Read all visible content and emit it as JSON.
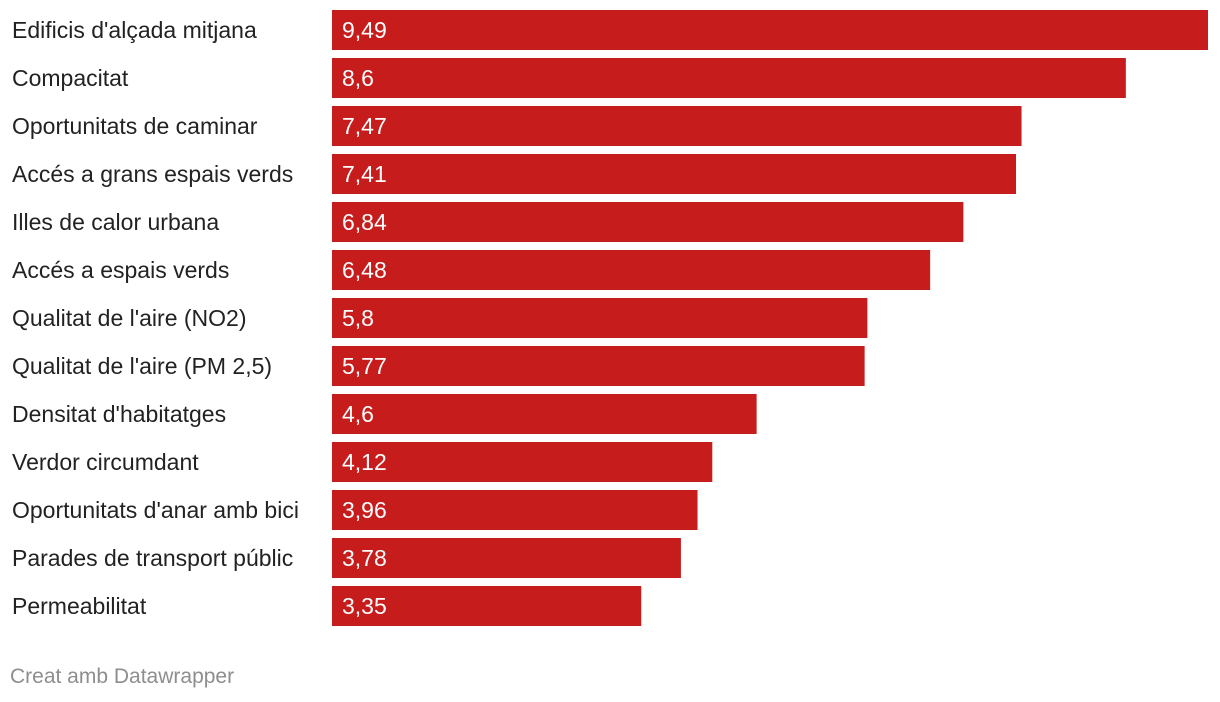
{
  "chart_data": {
    "type": "bar",
    "orientation": "horizontal",
    "categories": [
      "Edificis d'alçada mitjana",
      "Compacitat",
      "Oportunitats de caminar",
      "Accés a grans espais verds",
      "Illes de calor urbana",
      "Accés a espais verds",
      "Qualitat de l'aire (NO2)",
      "Qualitat de l'aire (PM 2,5)",
      "Densitat d'habitatges",
      "Verdor circumdant",
      "Oportunitats d'anar amb bici",
      "Parades de transport públic",
      "Permeabilitat"
    ],
    "values": [
      9.49,
      8.6,
      7.47,
      7.41,
      6.84,
      6.48,
      5.8,
      5.77,
      4.6,
      4.12,
      3.96,
      3.78,
      3.35
    ],
    "value_labels": [
      "9,49",
      "8,6",
      "7,47",
      "7,41",
      "6,84",
      "6,48",
      "5,8",
      "5,77",
      "4,6",
      "4,12",
      "3,96",
      "3,78",
      "3,35"
    ],
    "xlim": [
      0,
      9.49
    ],
    "bar_color": "#c71c1c",
    "grid": false
  },
  "footer": {
    "credit": "Creat amb Datawrapper"
  }
}
